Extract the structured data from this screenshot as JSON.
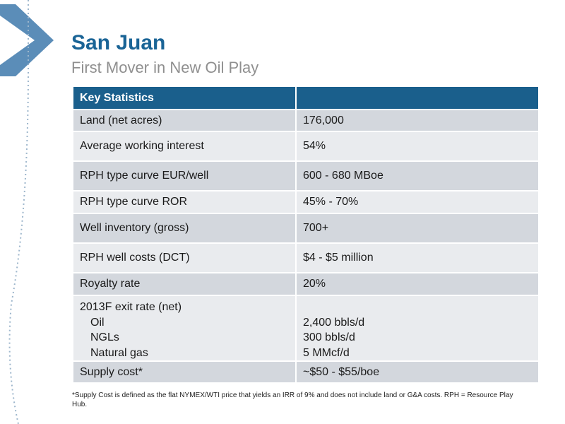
{
  "header": {
    "title": "San Juan",
    "subtitle": "First Mover in New Oil Play"
  },
  "table": {
    "header": [
      "Key Statistics",
      ""
    ],
    "rows": [
      {
        "label": "Land (net acres)",
        "value": "176,000"
      },
      {
        "label": "Average working interest",
        "value": "54%"
      },
      {
        "label": "RPH type curve EUR/well",
        "value": "600 - 680 MBoe"
      },
      {
        "label": "RPH type curve ROR",
        "value": "45% - 70%"
      },
      {
        "label": "Well inventory (gross)",
        "value": "700+"
      },
      {
        "label": "RPH well costs (DCT)",
        "value": "$4 - $5 million"
      },
      {
        "label": "Royalty rate",
        "value": "20%"
      },
      {
        "label": "2013F exit rate (net)",
        "sub": [
          {
            "label": "Oil",
            "value": "2,400 bbls/d"
          },
          {
            "label": "NGLs",
            "value": "300 bbls/d"
          },
          {
            "label": "Natural gas",
            "value": "5 MMcf/d"
          }
        ]
      },
      {
        "label": "Supply cost*",
        "value": "~$50 - $55/boe"
      }
    ]
  },
  "footnote": "*Supply Cost is defined as the flat NYMEX/WTI price that yields an IRR of 9% and does not include land or G&A costs. RPH = Resource Play Hub.",
  "colors": {
    "title": "#1a6496",
    "header_bg": "#1a5f8c",
    "row_dark": "#d3d7dd",
    "row_light": "#e9ebee",
    "chevron": "#5b8db8"
  },
  "icons": [
    "chevron-right-decoration",
    "dotted-curve-decoration"
  ]
}
